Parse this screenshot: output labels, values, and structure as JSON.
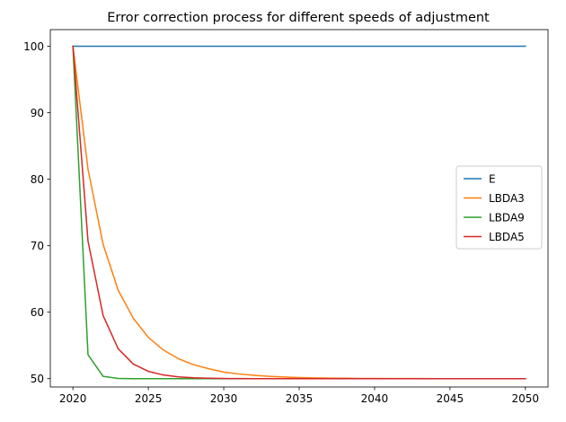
{
  "chart_data": {
    "type": "line",
    "title": "Error correction process for different speeds of adjustment",
    "xlabel": "",
    "ylabel": "",
    "xlim": [
      2018.5,
      2051.5
    ],
    "ylim": [
      48.75,
      102.5
    ],
    "xticks": [
      2020,
      2025,
      2030,
      2035,
      2040,
      2045,
      2050
    ],
    "yticks": [
      50,
      60,
      70,
      80,
      90,
      100
    ],
    "grid": false,
    "legend_position": "center-right",
    "x": [
      2020,
      2021,
      2022,
      2023,
      2024,
      2025,
      2026,
      2027,
      2028,
      2029,
      2030,
      2031,
      2032,
      2033,
      2034,
      2035,
      2036,
      2037,
      2038,
      2039,
      2040,
      2041,
      2042,
      2043,
      2044,
      2045,
      2046,
      2047,
      2048,
      2049,
      2050
    ],
    "series": [
      {
        "name": "E",
        "color": "#1f77b4",
        "values": [
          100,
          100,
          100,
          100,
          100,
          100,
          100,
          100,
          100,
          100,
          100,
          100,
          100,
          100,
          100,
          100,
          100,
          100,
          100,
          100,
          100,
          100,
          100,
          100,
          100,
          100,
          100,
          100,
          100,
          100,
          100
        ]
      },
      {
        "name": "LBDA3",
        "color": "#ff7f0e",
        "values": [
          100,
          81.5,
          70.2,
          63.3,
          59.1,
          56.2,
          54.3,
          53.0,
          52.1,
          51.5,
          51.0,
          50.7,
          50.5,
          50.35,
          50.25,
          50.17,
          50.12,
          50.08,
          50.06,
          50.04,
          50.03,
          50.02,
          50.01,
          50.01,
          50.0,
          50.0,
          50.0,
          50.0,
          50.0,
          50.0,
          50.0
        ]
      },
      {
        "name": "LBDA9",
        "color": "#2ca02c",
        "values": [
          100,
          53.6,
          50.35,
          50.03,
          50.0,
          50.0,
          50.0,
          50.0,
          50.0,
          50.0,
          50.0,
          50.0,
          50.0,
          50.0,
          50.0,
          50.0,
          50.0,
          50.0,
          50.0,
          50.0,
          50.0,
          50.0,
          50.0,
          50.0,
          50.0,
          50.0,
          50.0,
          50.0,
          50.0,
          50.0,
          50.0
        ]
      },
      {
        "name": "LBDA5",
        "color": "#d62728",
        "values": [
          100,
          70.7,
          59.5,
          54.5,
          52.2,
          51.1,
          50.55,
          50.27,
          50.13,
          50.06,
          50.03,
          50.01,
          50.0,
          50.0,
          50.0,
          50.0,
          50.0,
          50.0,
          50.0,
          50.0,
          50.0,
          50.0,
          50.0,
          50.0,
          50.0,
          50.0,
          50.0,
          50.0,
          50.0,
          50.0,
          50.0
        ]
      }
    ]
  }
}
